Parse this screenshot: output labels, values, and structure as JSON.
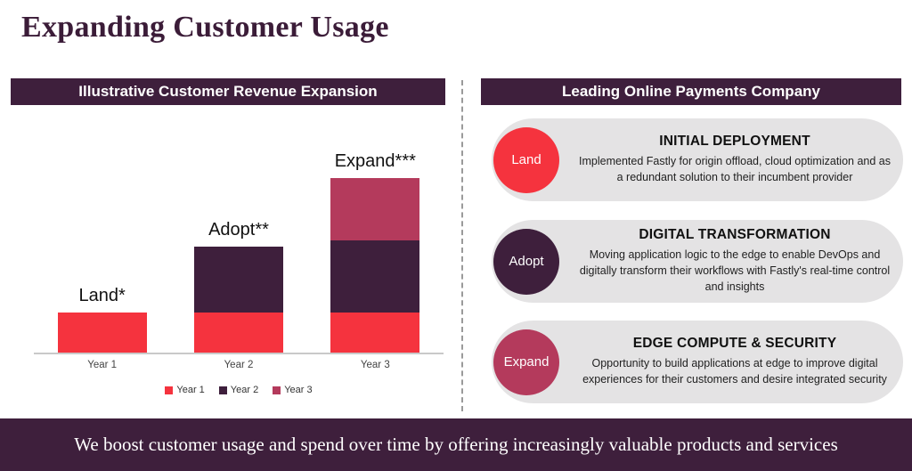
{
  "page": {
    "title": "Expanding Customer Usage",
    "footer": "We boost customer usage and spend over time by offering increasingly valuable products and services"
  },
  "colors": {
    "brand_dark_purple": "#3e1f3c",
    "brand_red": "#f5333e",
    "brand_crimson": "#b43a5c",
    "pill_gray": "#e4e3e4"
  },
  "left_panel": {
    "header": "Illustrative Customer Revenue Expansion"
  },
  "chart_data": {
    "type": "bar",
    "stacked": true,
    "title": "Illustrative Customer Revenue Expansion",
    "categories": [
      "Year 1",
      "Year 2",
      "Year 3"
    ],
    "series": [
      {
        "name": "Year 1",
        "color": "#f5333e",
        "values": [
          1,
          1,
          1
        ]
      },
      {
        "name": "Year 2",
        "color": "#3e1f3c",
        "values": [
          0,
          1.65,
          1.8
        ]
      },
      {
        "name": "Year 3",
        "color": "#b43a5c",
        "values": [
          0,
          0,
          1.55
        ]
      }
    ],
    "bar_labels": [
      "Land*",
      "Adopt**",
      "Expand***"
    ],
    "legend": [
      "Year 1",
      "Year 2",
      "Year 3"
    ],
    "legend_position": "bottom",
    "xlabel": "",
    "ylabel": "",
    "ylim": [
      0,
      5
    ],
    "gridlines": false,
    "value_units": "relative revenue (estimated from bar heights, Year 1 = 1)"
  },
  "right_panel": {
    "header": "Leading Online Payments Company",
    "rows": [
      {
        "badge": "Land",
        "badge_color": "#f5333e",
        "heading": "INITIAL DEPLOYMENT",
        "body": "Implemented Fastly for origin offload, cloud optimization and as a redundant solution to their incumbent provider"
      },
      {
        "badge": "Adopt",
        "badge_color": "#3e1f3c",
        "heading": "DIGITAL TRANSFORMATION",
        "body": "Moving application logic to the edge to enable DevOps and digitally transform their workflows with Fastly's real-time control and insights"
      },
      {
        "badge": "Expand",
        "badge_color": "#b43a5c",
        "heading": "EDGE COMPUTE & SECURITY",
        "body": "Opportunity to build applications at edge to improve digital experiences for their customers and desire integrated security"
      }
    ]
  }
}
